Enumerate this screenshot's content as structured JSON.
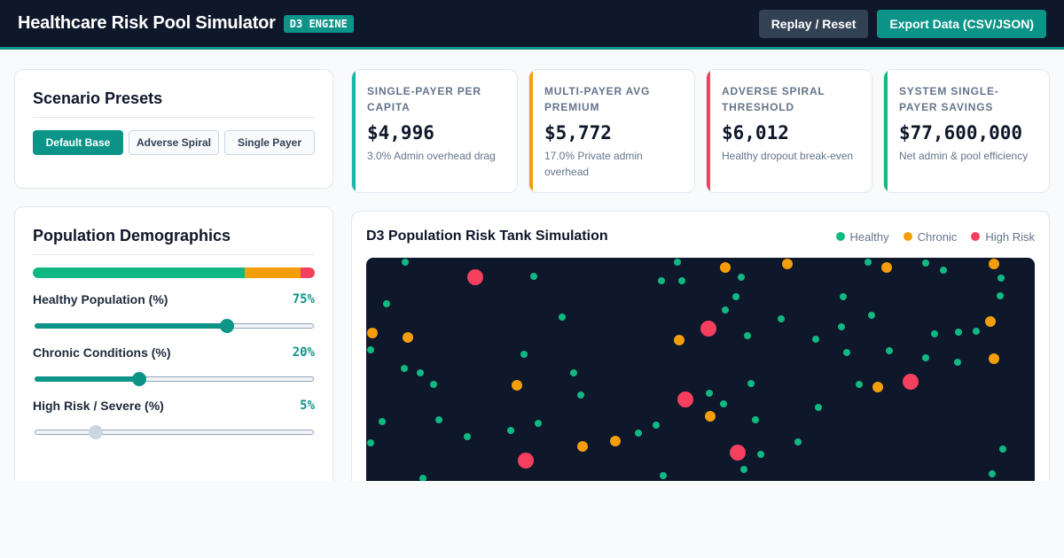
{
  "header": {
    "title": "Healthcare Risk Pool Simulator",
    "badge": "D3 ENGINE",
    "replay_label": "Replay / Reset",
    "export_label": "Export Data (CSV/JSON)"
  },
  "presets": {
    "title": "Scenario Presets",
    "buttons": [
      "Default Base",
      "Adverse Spiral",
      "Single Payer"
    ],
    "active": "Default Base"
  },
  "demographics": {
    "title": "Population Demographics",
    "mix": {
      "healthy": 75,
      "chronic": 20,
      "high_risk": 5
    },
    "sliders": [
      {
        "label": "Healthy Population (%)",
        "value": "75%",
        "level": 0.69
      },
      {
        "label": "Chronic Conditions (%)",
        "value": "20%",
        "level": 0.375
      },
      {
        "label": "High Risk / Severe (%)",
        "value": "5%",
        "level": 0.22
      }
    ]
  },
  "metrics": [
    {
      "label": "Single-Payer Per Capita",
      "value": "$4,996",
      "sub": "3.0% Admin overhead drag",
      "accent": "#14b8a6"
    },
    {
      "label": "Multi-Payer Avg Premium",
      "value": "$5,772",
      "sub": "17.0% Private admin overhead",
      "accent": "#f59e0b"
    },
    {
      "label": "Adverse Spiral Threshold",
      "value": "$6,012",
      "sub": "Healthy dropout break-even",
      "accent": "#f43f5e"
    },
    {
      "label": "System Single-Payer Savings",
      "value": "$77,600,000",
      "sub": "Net admin & pool efficiency",
      "accent": "#10b981"
    }
  ],
  "simulation": {
    "title": "D3 Population Risk Tank Simulation",
    "legend": [
      {
        "label": "Healthy",
        "color": "#10b981"
      },
      {
        "label": "Chronic",
        "color": "#f59e0b"
      },
      {
        "label": "High Risk",
        "color": "#f43f5e"
      }
    ],
    "colors": {
      "healthy": "#10b981",
      "chronic": "#f59e0b",
      "high_risk": "#f43f5e",
      "tank_background": "#0f172a"
    }
  }
}
